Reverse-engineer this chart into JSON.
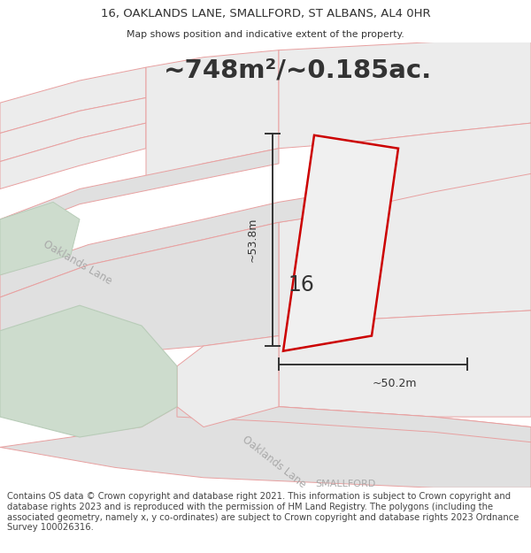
{
  "title_line1": "16, OAKLANDS LANE, SMALLFORD, ST ALBANS, AL4 0HR",
  "title_line2": "Map shows position and indicative extent of the property.",
  "area_text": "~748m²/~0.185ac.",
  "label_number": "16",
  "label_width": "~50.2m",
  "label_height": "~53.8m",
  "label_smallford": "SMALLFORD",
  "label_oaklands_upper": "Oaklands Lane",
  "label_oaklands_lower": "Oaklands Lane",
  "footer_text": "Contains OS data © Crown copyright and database right 2021. This information is subject to Crown copyright and database rights 2023 and is reproduced with the permission of HM Land Registry. The polygons (including the associated geometry, namely x, y co-ordinates) are subject to Crown copyright and database rights 2023 Ordnance Survey 100026316.",
  "bg_color": "#f2f2f2",
  "road_fill": "#e0e0e0",
  "road_edge": "#e8a0a0",
  "plot_fill": "#ececec",
  "plot_edge": "#e8a0a0",
  "prop_fill": "#ececec",
  "prop_edge": "#cc0000",
  "green_fill": "#cddccd",
  "green_edge": "#e8a0a0",
  "dim_color": "#333333",
  "text_dark": "#333333",
  "text_grey": "#aaaaaa",
  "title_color": "#333333",
  "footer_color": "#444444",
  "footer_fontsize": 7.2,
  "title_fontsize": 9.5,
  "subtitle_fontsize": 7.8,
  "area_fontsize": 21
}
